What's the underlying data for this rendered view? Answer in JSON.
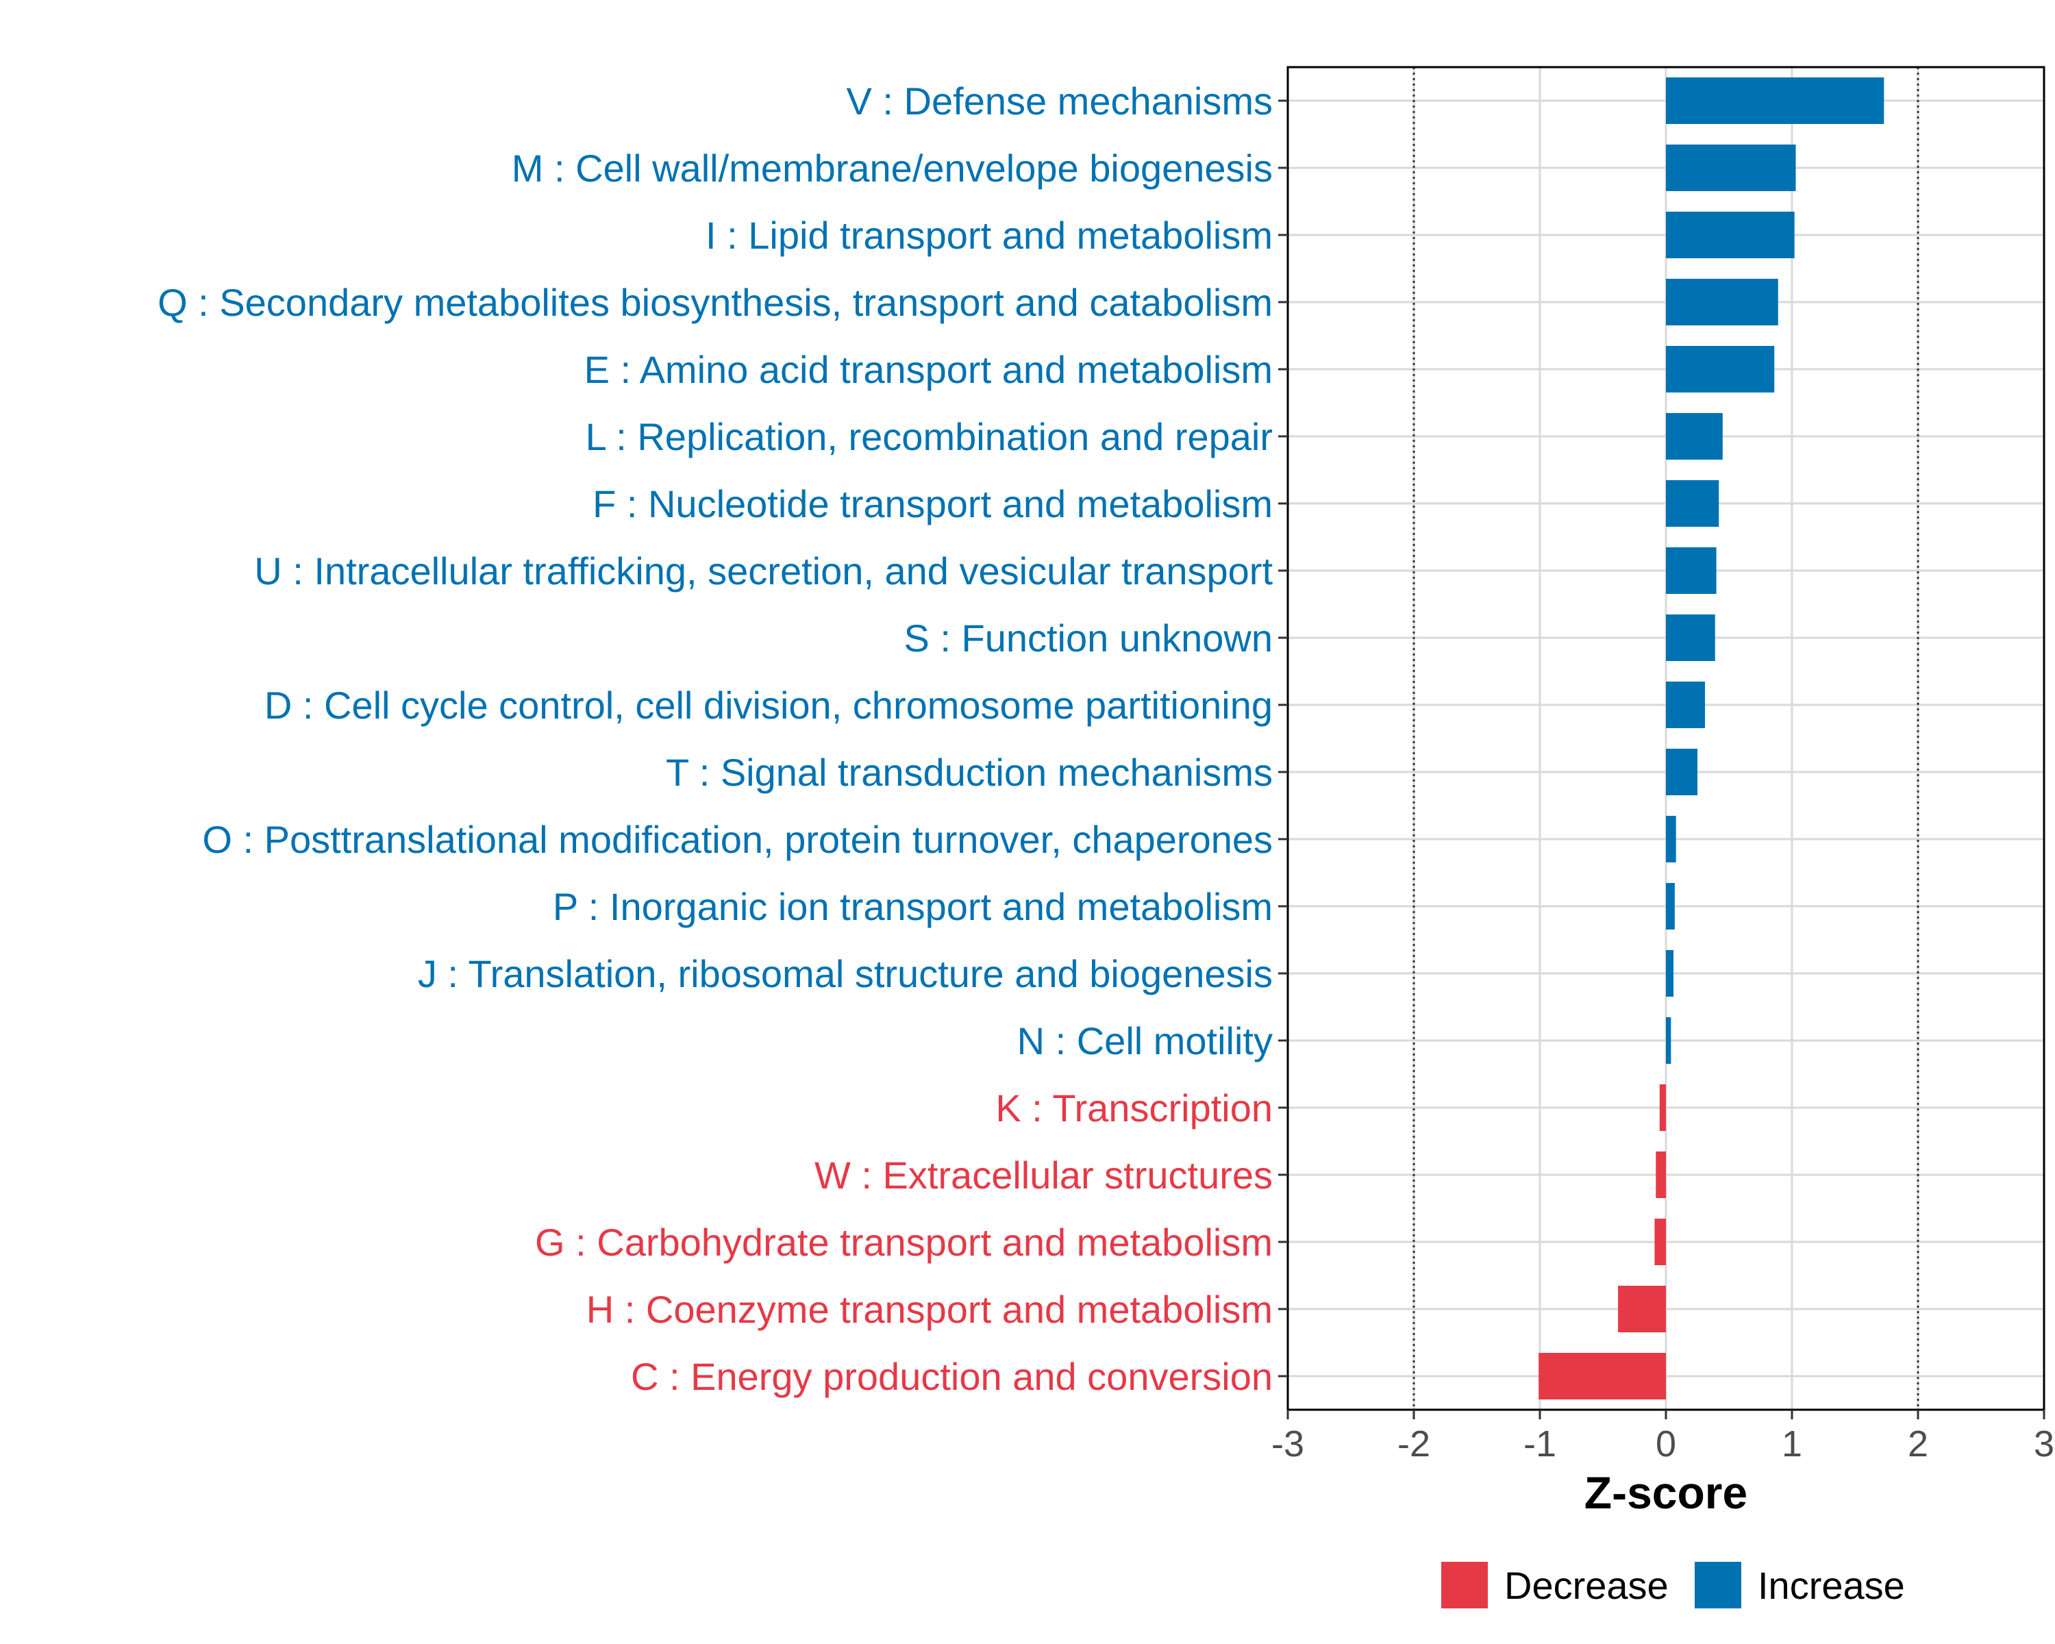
{
  "chart_data": {
    "type": "bar",
    "orientation": "horizontal",
    "xlabel": "Z-score",
    "ylabel": "",
    "xlim": [
      -3,
      3
    ],
    "xticks": [
      -3,
      -2,
      -1,
      0,
      1,
      2,
      3
    ],
    "reference_lines": [
      -2,
      2
    ],
    "grid": true,
    "colors": {
      "Increase": "#0072b2",
      "Decrease": "#e63946"
    },
    "categories": [
      "V : Defense mechanisms",
      "M : Cell wall/membrane/envelope biogenesis",
      "I : Lipid transport and metabolism",
      "Q : Secondary metabolites biosynthesis, transport and catabolism",
      "E : Amino acid transport and metabolism",
      "L : Replication, recombination and repair",
      "F : Nucleotide transport and metabolism",
      "U : Intracellular trafficking, secretion, and vesicular transport",
      "S : Function unknown",
      "D : Cell cycle control, cell division, chromosome partitioning",
      "T : Signal transduction mechanisms",
      "O : Posttranslational modification, protein turnover, chaperones",
      "P : Inorganic ion transport and metabolism",
      "J : Translation, ribosomal structure and biogenesis",
      "N : Cell motility",
      "K : Transcription",
      "W : Extracellular structures",
      "G : Carbohydrate transport and metabolism",
      "H : Coenzyme transport and metabolism",
      "C : Energy production and conversion"
    ],
    "values": [
      1.73,
      1.03,
      1.02,
      0.89,
      0.86,
      0.45,
      0.42,
      0.4,
      0.39,
      0.31,
      0.25,
      0.08,
      0.07,
      0.06,
      0.04,
      -0.05,
      -0.08,
      -0.09,
      -0.38,
      -1.01
    ],
    "direction": [
      "Increase",
      "Increase",
      "Increase",
      "Increase",
      "Increase",
      "Increase",
      "Increase",
      "Increase",
      "Increase",
      "Increase",
      "Increase",
      "Increase",
      "Increase",
      "Increase",
      "Increase",
      "Decrease",
      "Decrease",
      "Decrease",
      "Decrease",
      "Decrease"
    ],
    "legend": {
      "position": "bottom",
      "entries": [
        "Decrease",
        "Increase"
      ]
    }
  }
}
